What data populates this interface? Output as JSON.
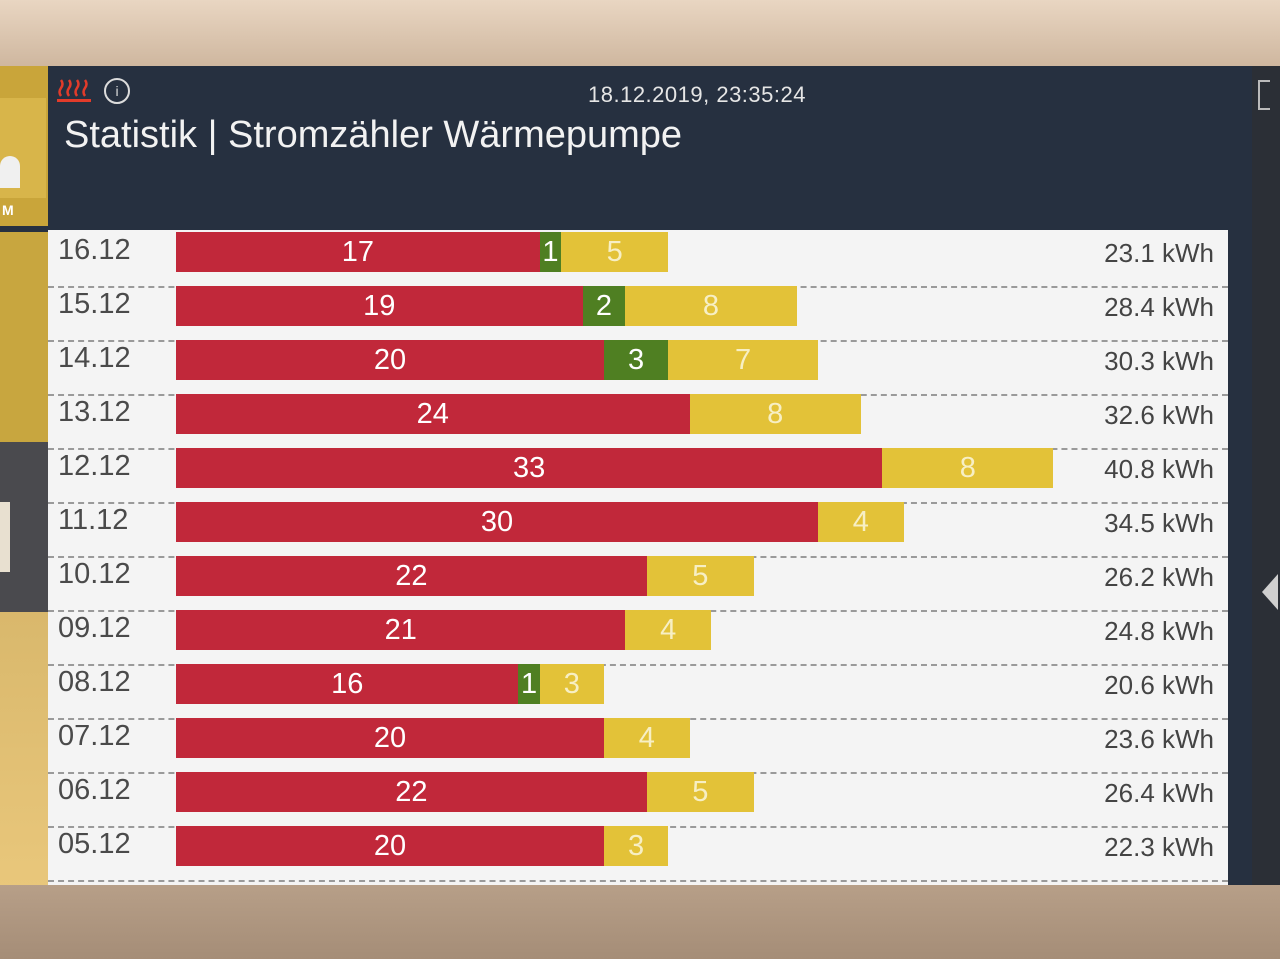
{
  "header": {
    "datetime": "18.12.2019, 23:35:24",
    "title": "Statistik | Stromzähler Wärmepumpe",
    "info_icon": "i"
  },
  "sidebar": {
    "home_label": "M"
  },
  "colors": {
    "high": "#c1283a",
    "mid": "#4f7f22",
    "low": "#e3c238"
  },
  "rows": [
    {
      "date": "16.12",
      "red": 17,
      "green": 1,
      "yellow": 5,
      "total": "23.1 kWh"
    },
    {
      "date": "15.12",
      "red": 19,
      "green": 2,
      "yellow": 8,
      "total": "28.4 kWh"
    },
    {
      "date": "14.12",
      "red": 20,
      "green": 3,
      "yellow": 7,
      "total": "30.3 kWh"
    },
    {
      "date": "13.12",
      "red": 24,
      "green": null,
      "yellow": 8,
      "total": "32.6 kWh"
    },
    {
      "date": "12.12",
      "red": 33,
      "green": null,
      "yellow": 8,
      "total": "40.8 kWh"
    },
    {
      "date": "11.12",
      "red": 30,
      "green": null,
      "yellow": 4,
      "total": "34.5 kWh"
    },
    {
      "date": "10.12",
      "red": 22,
      "green": null,
      "yellow": 5,
      "total": "26.2 kWh"
    },
    {
      "date": "09.12",
      "red": 21,
      "green": null,
      "yellow": 4,
      "total": "24.8 kWh"
    },
    {
      "date": "08.12",
      "red": 16,
      "green": 1,
      "yellow": 3,
      "total": "20.6 kWh"
    },
    {
      "date": "07.12",
      "red": 20,
      "green": null,
      "yellow": 4,
      "total": "23.6 kWh"
    },
    {
      "date": "06.12",
      "red": 22,
      "green": null,
      "yellow": 5,
      "total": "26.4 kWh"
    },
    {
      "date": "05.12",
      "red": 20,
      "green": null,
      "yellow": 3,
      "total": "22.3 kWh"
    }
  ]
}
